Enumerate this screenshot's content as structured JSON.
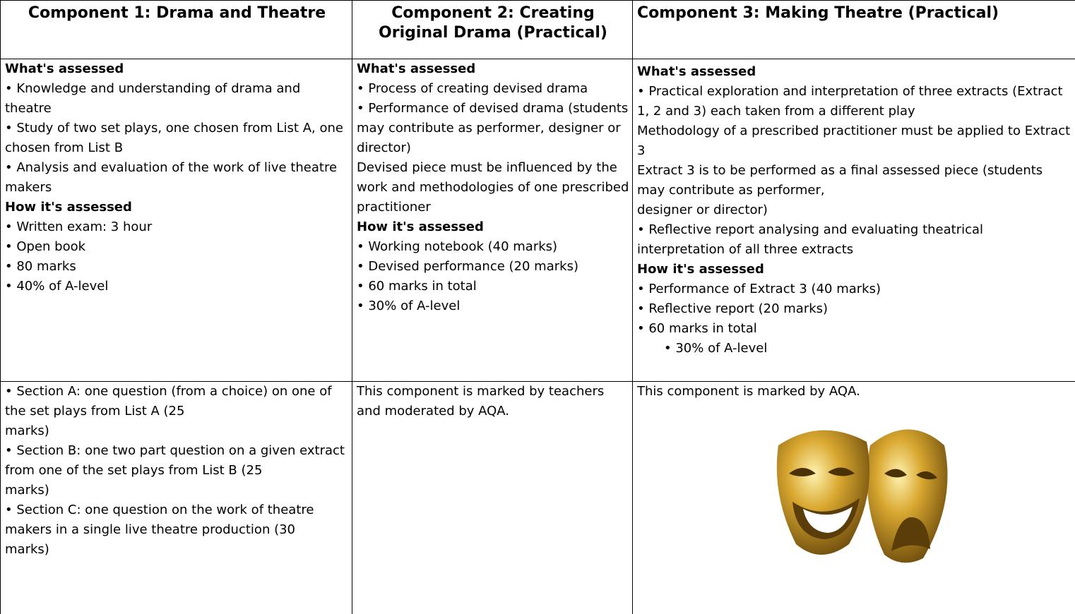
{
  "table": {
    "headers": [
      "Component 1: Drama and Theatre",
      "Component 2: Creating Original Drama (Practical)",
      "Component 3: Making Theatre (Practical)"
    ],
    "rows": [
      [
        {
          "sections": [
            {
              "heading": "What's assessed",
              "items": [
                "• Knowledge and understanding of drama and theatre",
                "• Study of two set plays, one chosen from List A, one chosen from List B",
                "• Analysis and evaluation of the work of live theatre makers"
              ]
            },
            {
              "heading": "How it's assessed",
              "items": [
                "• Written exam: 3 hour",
                "• Open book",
                "• 80 marks",
                "• 40% of A-level"
              ]
            }
          ]
        },
        {
          "sections": [
            {
              "heading": "What's assessed",
              "items": [
                "• Process of creating devised drama",
                "• Performance of devised drama (students may contribute as performer, designer or director)",
                "Devised piece must be influenced by the work and methodologies of one prescribed practitioner"
              ]
            },
            {
              "heading": "How it's assessed",
              "items": [
                "• Working notebook (40 marks)",
                "• Devised performance (20 marks)",
                "• 60 marks in total",
                "• 30% of A-level"
              ]
            }
          ]
        },
        {
          "sections": [
            {
              "heading": "What's assessed",
              "items": [
                "• Practical exploration and interpretation of three extracts (Extract 1, 2 and 3) each taken from a different play",
                "Methodology of a prescribed practitioner must be applied to Extract 3",
                "Extract 3 is to be performed as a final assessed piece (students may contribute as performer,",
                "designer or director)",
                "• Reflective report analysing and evaluating theatrical interpretation of all three extracts"
              ]
            },
            {
              "heading": "How it's assessed",
              "items": [
                "• Performance of Extract 3 (40 marks)",
                "• Reflective report (20 marks)",
                "• 60 marks in total",
                "• 30% of A-level"
              ]
            }
          ]
        }
      ],
      [
        {
          "items": [
            "• Section A: one question (from a choice) on one of the set plays from List A (25",
            "marks)",
            "• Section B: one two part question on a given extract from one of the set plays from List B (25",
            "marks)",
            "• Section C: one question on the work of theatre makers in a single live theatre production (30",
            "marks)"
          ]
        },
        {
          "items": [
            "This component is marked by teachers and moderated by AQA."
          ]
        },
        {
          "items": [
            "This component is marked by AQA."
          ]
        }
      ]
    ]
  }
}
